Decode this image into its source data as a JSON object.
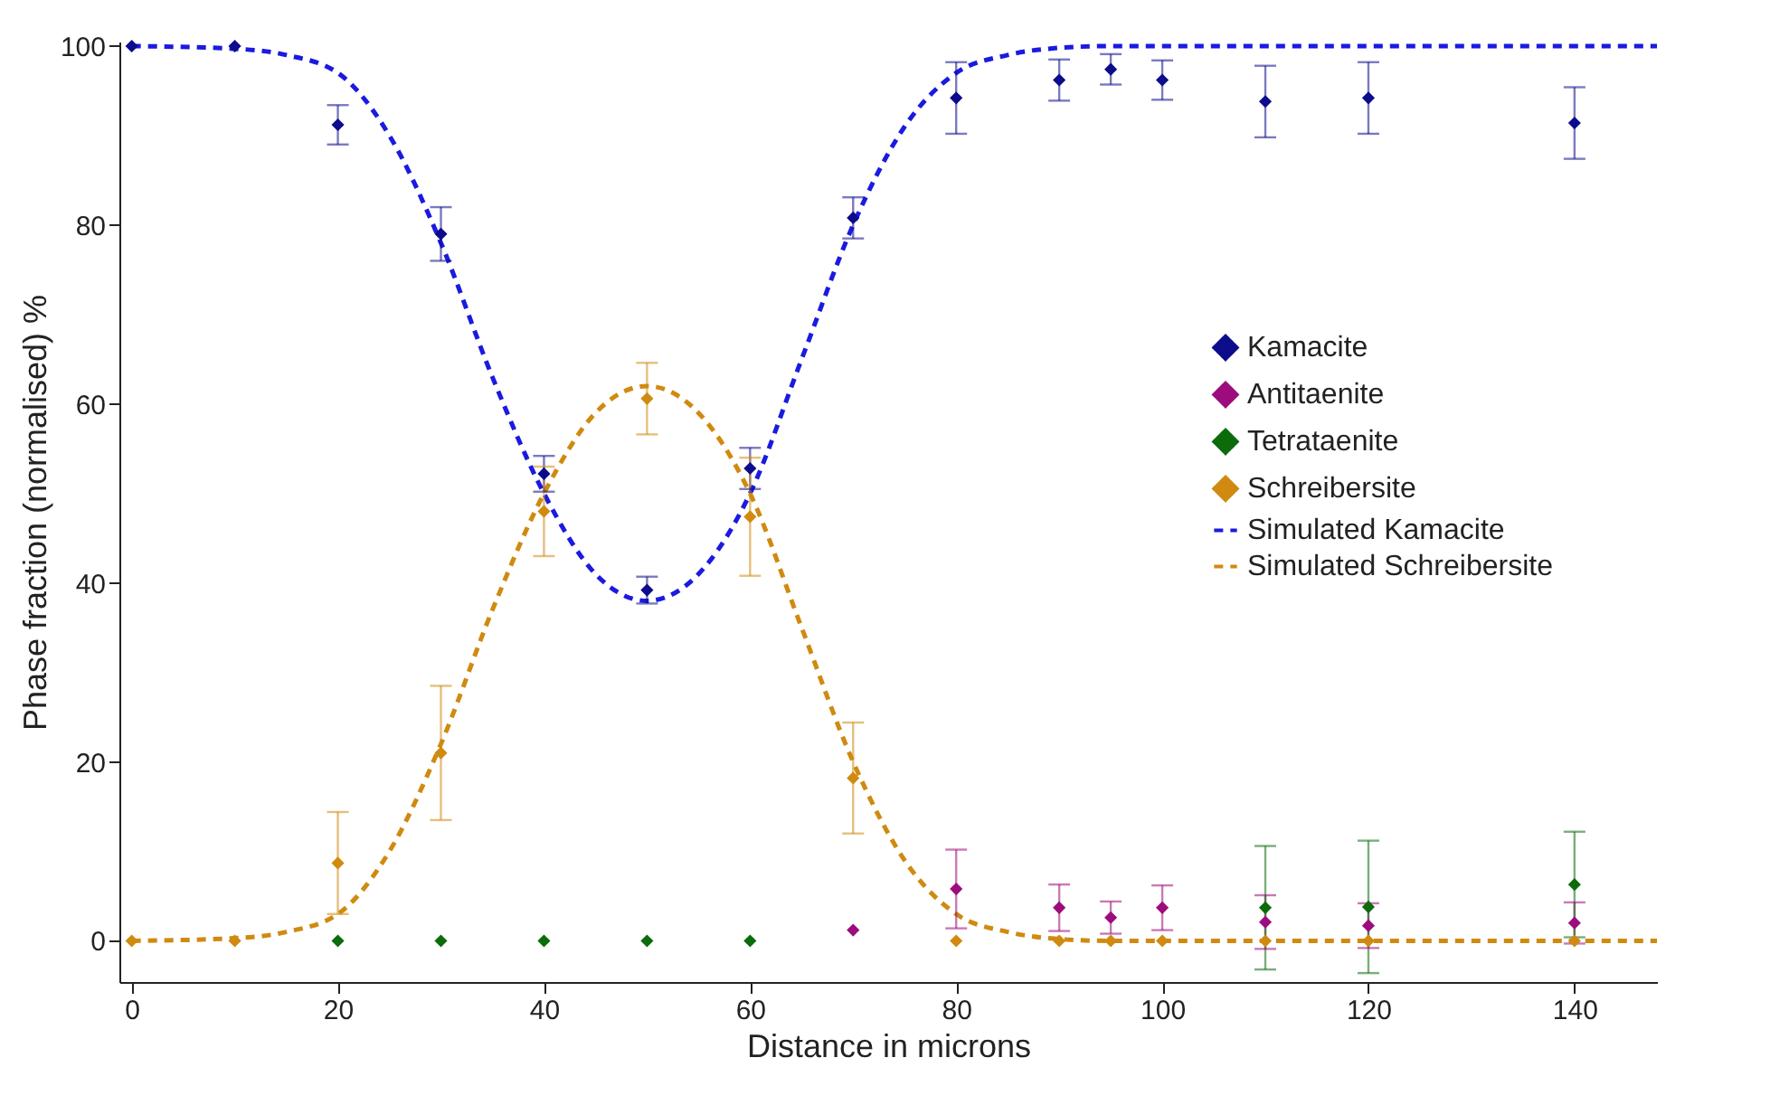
{
  "chart_data": {
    "type": "scatter",
    "xlabel": "Distance in microns",
    "ylabel": "Phase fraction (normalised) %",
    "xlim": [
      -1.2,
      148
    ],
    "ylim": [
      -4.6,
      100.5
    ],
    "xticks": [
      0,
      20,
      40,
      60,
      80,
      100,
      120,
      140
    ],
    "yticks": [
      0,
      20,
      40,
      60,
      80,
      100
    ],
    "grid": false,
    "legend": "right",
    "series": [
      {
        "name": "Kamacite",
        "color": "#0c0c8c",
        "marker": "diamond",
        "x": [
          0,
          10,
          20,
          30,
          40,
          50,
          60,
          70,
          80,
          90,
          95,
          100,
          110,
          120,
          140
        ],
        "values": [
          100,
          100,
          91.2,
          79,
          52.2,
          39.2,
          52.8,
          80.8,
          94.2,
          96.2,
          97.4,
          96.2,
          93.8,
          94.2,
          91.4
        ],
        "errors": [
          null,
          null,
          2.2,
          3,
          2,
          1.5,
          2.3,
          2.3,
          4,
          2.3,
          1.7,
          2.2,
          4,
          4,
          4
        ]
      },
      {
        "name": "Antitaenite",
        "color": "#9c0c7c",
        "marker": "diamond",
        "x": [
          70,
          80,
          90,
          95,
          100,
          110,
          120,
          140
        ],
        "values": [
          1.2,
          5.8,
          3.7,
          2.6,
          3.7,
          2.1,
          1.7,
          2
        ],
        "errors": [
          null,
          4.4,
          2.6,
          1.8,
          2.5,
          3,
          2.5,
          2.3
        ]
      },
      {
        "name": "Tetrataenite",
        "color": "#0c6c0c",
        "marker": "diamond",
        "x": [
          20,
          30,
          40,
          50,
          60,
          110,
          120,
          140
        ],
        "values": [
          0,
          0,
          0,
          0,
          0,
          3.7,
          3.8,
          6.3
        ],
        "errors": [
          null,
          null,
          null,
          null,
          null,
          6.9,
          7.4,
          5.9
        ]
      },
      {
        "name": "Schreibersite",
        "color": "#d08a10",
        "marker": "diamond",
        "x": [
          0,
          10,
          20,
          30,
          40,
          50,
          60,
          70,
          80,
          90,
          95,
          100,
          110,
          120,
          140
        ],
        "values": [
          0,
          0,
          8.7,
          21,
          48,
          60.6,
          47.4,
          18.2,
          0,
          0,
          0,
          0,
          0,
          0,
          0
        ],
        "errors": [
          null,
          null,
          5.7,
          7.5,
          5,
          4,
          6.6,
          6.2,
          null,
          null,
          null,
          null,
          null,
          null,
          null
        ]
      },
      {
        "name": "Simulated Kamacite",
        "color": "#1a1ae0",
        "type": "line",
        "marker": "none",
        "line_style": "dashed",
        "x": [
          0,
          10,
          15,
          20,
          25,
          30,
          35,
          40,
          45,
          50,
          55,
          60,
          65,
          70,
          75,
          80,
          85,
          90,
          95,
          148
        ],
        "values": [
          100,
          99.7,
          99,
          97,
          90,
          78,
          63,
          50,
          41,
          38,
          41,
          50,
          65,
          80,
          91,
          97,
          99,
          99.8,
          100,
          100
        ]
      },
      {
        "name": "Simulated Schreibersite",
        "color": "#d08a10",
        "type": "line",
        "marker": "none",
        "line_style": "dashed",
        "x": [
          0,
          10,
          15,
          20,
          25,
          30,
          35,
          40,
          45,
          50,
          55,
          60,
          65,
          70,
          75,
          80,
          85,
          90,
          95,
          148
        ],
        "values": [
          0,
          0.3,
          1,
          3,
          10,
          22,
          37,
          50,
          59,
          62,
          59,
          50,
          35,
          20,
          9,
          3,
          1,
          0.2,
          0,
          0
        ]
      }
    ]
  }
}
